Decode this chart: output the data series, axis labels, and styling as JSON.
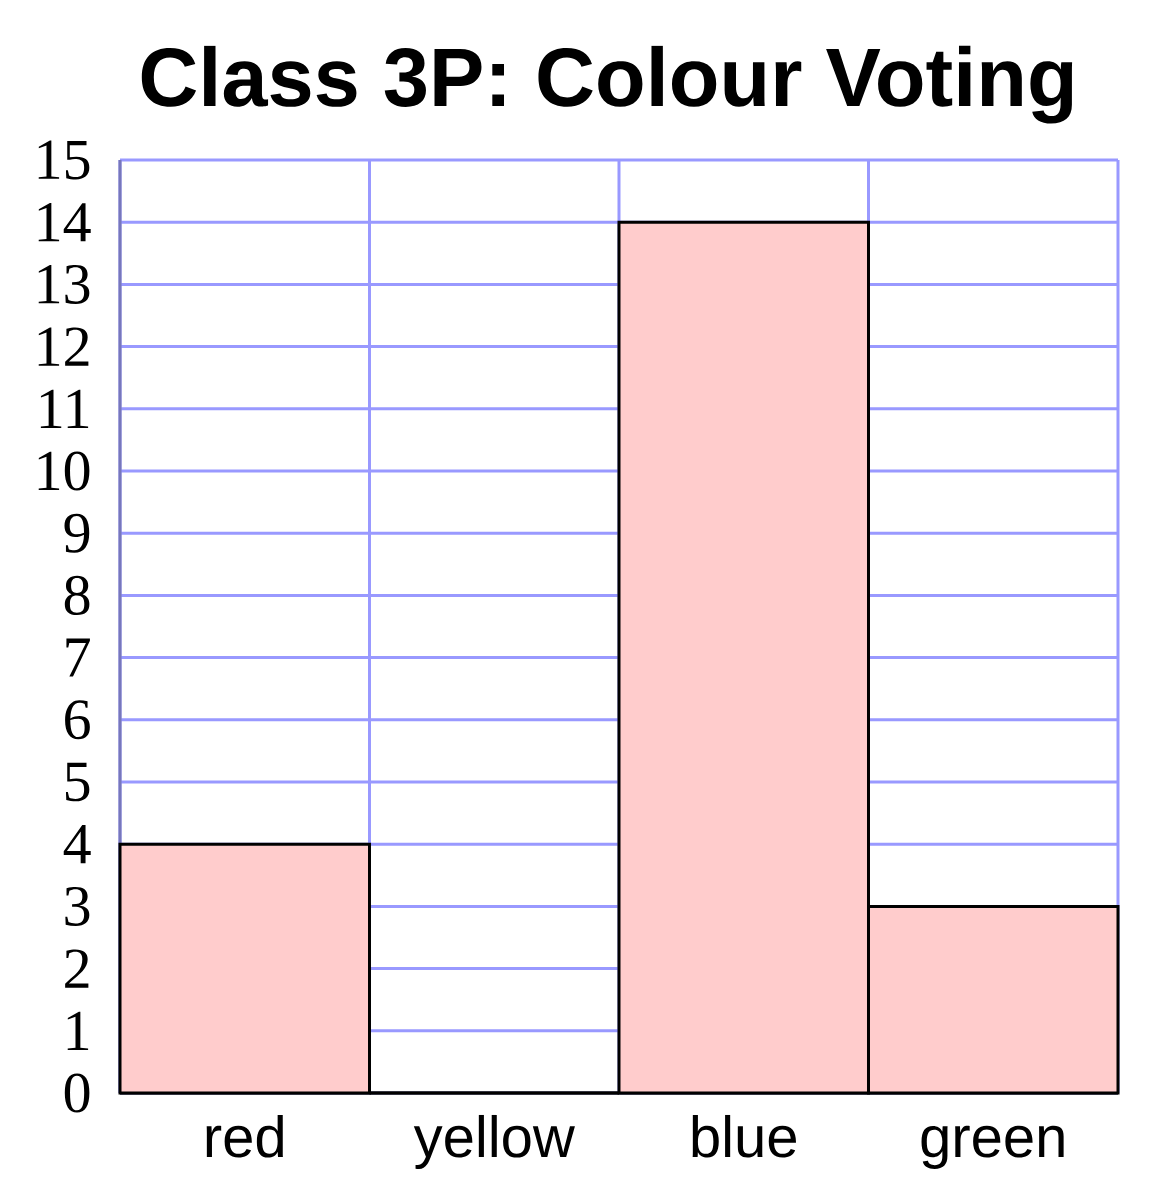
{
  "chart_data": {
    "type": "bar",
    "title": "Class 3P: Colour Voting",
    "categories": [
      "red",
      "yellow",
      "blue",
      "green"
    ],
    "values": [
      4,
      0,
      14,
      3
    ],
    "color": "#ffcccc",
    "ylim": [
      0,
      15
    ],
    "yticks": [
      0,
      1,
      2,
      3,
      4,
      5,
      6,
      7,
      8,
      9,
      10,
      11,
      12,
      13,
      14,
      15
    ],
    "grid": true
  }
}
